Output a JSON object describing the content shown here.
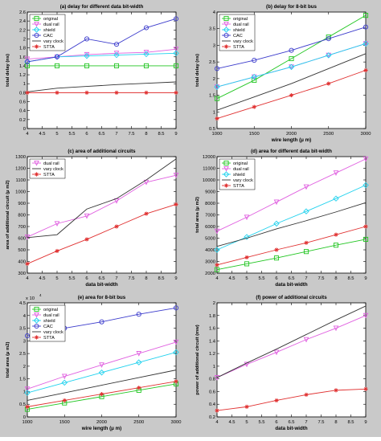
{
  "figure": {
    "background": "#c9c9c9",
    "plot_background": "#ffffff"
  },
  "chart_data": [
    {
      "type": "line",
      "title": "(a) delay for different data bit-width",
      "xlabel": "",
      "ylabel": "total delay (ns)",
      "xlim": [
        4,
        9
      ],
      "ylim": [
        0,
        2.6
      ],
      "xticks": [
        "4",
        "4.5",
        "5",
        "5.5",
        "6",
        "6.5",
        "7",
        "7.5",
        "8",
        "8.5",
        "9"
      ],
      "yticks": [
        "0",
        "0.2",
        "0.4",
        "0.6",
        "0.8",
        "1",
        "1.2",
        "1.4",
        "1.6",
        "1.8",
        "2",
        "2.2",
        "2.4",
        "2.6"
      ],
      "legend": "top-left",
      "series": [
        {
          "name": "original",
          "color": "#22c622",
          "marker": "square",
          "x": [
            4,
            5,
            6,
            7,
            8,
            9
          ],
          "y": [
            1.4,
            1.4,
            1.4,
            1.4,
            1.4,
            1.4
          ]
        },
        {
          "name": "dual rail",
          "color": "#e060e0",
          "marker": "triangle",
          "x": [
            4,
            5,
            6,
            7,
            8,
            9
          ],
          "y": [
            1.55,
            1.6,
            1.65,
            1.68,
            1.7,
            1.77
          ]
        },
        {
          "name": "shield",
          "color": "#22d2ee",
          "marker": "diamond",
          "x": [
            4,
            5,
            6,
            7,
            8,
            9
          ],
          "y": [
            1.49,
            1.6,
            1.62,
            1.64,
            1.66,
            1.68
          ]
        },
        {
          "name": "CAC",
          "color": "#3c3ccc",
          "marker": "circle",
          "x": [
            4,
            5,
            6,
            7,
            8,
            9
          ],
          "y": [
            1.49,
            1.6,
            2,
            1.88,
            2.25,
            2.45
          ]
        },
        {
          "name": "vary clock",
          "color": "#333333",
          "marker": "none",
          "x": [
            4,
            5,
            6,
            7,
            8,
            9
          ],
          "y": [
            0.82,
            0.9,
            0.94,
            0.98,
            1.01,
            1.04
          ]
        },
        {
          "name": "STTA",
          "color": "#e03030",
          "marker": "star",
          "x": [
            4,
            5,
            6,
            7,
            8,
            9
          ],
          "y": [
            0.8,
            0.8,
            0.8,
            0.8,
            0.8,
            0.8
          ]
        }
      ]
    },
    {
      "type": "line",
      "title": "(b) delay for 8-bit bus",
      "xlabel": "wire length (μ m)",
      "ylabel": "total delay (ns)",
      "xlim": [
        1000,
        3000
      ],
      "ylim": [
        0.5,
        4
      ],
      "xticks": [
        "1000",
        "1500",
        "2000",
        "2500",
        "3000"
      ],
      "yticks": [
        "0.5",
        "1",
        "1.5",
        "2",
        "2.5",
        "3",
        "3.5",
        "4"
      ],
      "legend": "top-left",
      "series": [
        {
          "name": "original",
          "color": "#22c622",
          "marker": "square",
          "x": [
            1000,
            1500,
            2000,
            2500,
            3000
          ],
          "y": [
            1.4,
            1.95,
            2.6,
            3.25,
            3.9
          ]
        },
        {
          "name": "dual rail",
          "color": "#e060e0",
          "marker": "triangle",
          "x": [
            1000,
            1500,
            2000,
            2500,
            3000
          ],
          "y": [
            1.75,
            2.05,
            2.35,
            2.7,
            3.05
          ]
        },
        {
          "name": "shield",
          "color": "#22d2ee",
          "marker": "diamond",
          "x": [
            1000,
            1500,
            2000,
            2500,
            3000
          ],
          "y": [
            1.75,
            2.05,
            2.35,
            2.7,
            3.05
          ]
        },
        {
          "name": "CAC",
          "color": "#3c3ccc",
          "marker": "circle",
          "x": [
            1000,
            1500,
            2000,
            2500,
            3000
          ],
          "y": [
            2.3,
            2.55,
            2.85,
            3.2,
            3.55
          ]
        },
        {
          "name": "vary clock",
          "color": "#333333",
          "marker": "none",
          "x": [
            1000,
            1500,
            2000,
            2500,
            3000
          ],
          "y": [
            1.05,
            1.45,
            1.85,
            2.3,
            2.75
          ]
        },
        {
          "name": "STTA",
          "color": "#e03030",
          "marker": "star",
          "x": [
            1000,
            1500,
            2000,
            2500,
            3000
          ],
          "y": [
            0.8,
            1.15,
            1.5,
            1.85,
            2.25
          ]
        }
      ]
    },
    {
      "type": "line",
      "title": "(c) area of additional circuits",
      "xlabel": "data bit-width",
      "ylabel": "area of additional circuit (μ m2)",
      "xlim": [
        4,
        9
      ],
      "ylim": [
        300,
        1300
      ],
      "xticks": [
        "4",
        "4.5",
        "5",
        "5.5",
        "6",
        "6.5",
        "7",
        "7.5",
        "8",
        "8.5",
        "9"
      ],
      "yticks": [
        "300",
        "400",
        "500",
        "600",
        "700",
        "800",
        "900",
        "1000",
        "1100",
        "1200",
        "1300"
      ],
      "legend": "top-left",
      "series": [
        {
          "name": "dual rail",
          "color": "#e060e0",
          "marker": "triangle",
          "x": [
            4,
            5,
            6,
            7,
            8,
            9
          ],
          "y": [
            610,
            725,
            790,
            920,
            1080,
            1140
          ]
        },
        {
          "name": "vary clock",
          "color": "#333333",
          "marker": "none",
          "x": [
            4,
            5,
            6,
            7,
            8,
            9
          ],
          "y": [
            605,
            630,
            850,
            940,
            1100,
            1280
          ]
        },
        {
          "name": "STTA",
          "color": "#e03030",
          "marker": "star",
          "x": [
            4,
            5,
            6,
            7,
            8,
            9
          ],
          "y": [
            380,
            490,
            590,
            700,
            810,
            890
          ]
        }
      ]
    },
    {
      "type": "line",
      "title": "(d) area for different data bit-width",
      "xlabel": "data bit-width",
      "ylabel": "total area (μ m2)",
      "xlim": [
        4,
        9
      ],
      "ylim": [
        2000,
        12000
      ],
      "xticks": [
        "4",
        "4.5",
        "5",
        "5.5",
        "6",
        "6.5",
        "7",
        "7.5",
        "8",
        "8.5",
        "9"
      ],
      "yticks": [
        "2000",
        "3000",
        "4000",
        "5000",
        "6000",
        "7000",
        "8000",
        "9000",
        "10000",
        "11000",
        "12000"
      ],
      "legend": "top-left",
      "series": [
        {
          "name": "original",
          "color": "#22c622",
          "marker": "square",
          "x": [
            4,
            5,
            6,
            7,
            8,
            9
          ],
          "y": [
            2300,
            2800,
            3300,
            3850,
            4400,
            4900
          ]
        },
        {
          "name": "dual rail",
          "color": "#e060e0",
          "marker": "triangle",
          "x": [
            4,
            5,
            6,
            7,
            8,
            9
          ],
          "y": [
            5600,
            6800,
            8100,
            9400,
            10600,
            11800
          ]
        },
        {
          "name": "shield",
          "color": "#22d2ee",
          "marker": "diamond",
          "x": [
            4,
            5,
            6,
            7,
            8,
            9
          ],
          "y": [
            4000,
            5100,
            6250,
            7300,
            8400,
            9550
          ]
        },
        {
          "name": "vary clock",
          "color": "#333333",
          "marker": "none",
          "x": [
            4,
            5,
            6,
            7,
            8,
            9
          ],
          "y": [
            4300,
            5000,
            5800,
            6500,
            7250,
            8050
          ]
        },
        {
          "name": "STTA",
          "color": "#e03030",
          "marker": "star",
          "x": [
            4,
            5,
            6,
            7,
            8,
            9
          ],
          "y": [
            2700,
            3350,
            4000,
            4600,
            5300,
            6000
          ]
        }
      ]
    },
    {
      "type": "line",
      "title": "(e) area for 8-bit bus",
      "xlabel": "wire length (μ m)",
      "ylabel": "total area (μ m2)",
      "exponent": "x 10",
      "exponent_power": "4",
      "xlim": [
        1000,
        3000
      ],
      "ylim": [
        0,
        4.5
      ],
      "xticks": [
        "1000",
        "1500",
        "2000",
        "2500",
        "3000"
      ],
      "yticks": [
        "0",
        "0.5",
        "1",
        "1.5",
        "2",
        "2.5",
        "3",
        "3.5",
        "4",
        "4.5"
      ],
      "legend": "top-left",
      "series": [
        {
          "name": "original",
          "color": "#22c622",
          "marker": "square",
          "x": [
            1000,
            1500,
            2000,
            2500,
            3000
          ],
          "y": [
            0.3,
            0.55,
            0.8,
            1.05,
            1.3
          ]
        },
        {
          "name": "dual rail",
          "color": "#e060e0",
          "marker": "triangle",
          "x": [
            1000,
            1500,
            2000,
            2500,
            3000
          ],
          "y": [
            1.1,
            1.6,
            2.05,
            2.5,
            2.95
          ]
        },
        {
          "name": "shield",
          "color": "#22d2ee",
          "marker": "diamond",
          "x": [
            1000,
            1500,
            2000,
            2500,
            3000
          ],
          "y": [
            0.95,
            1.35,
            1.75,
            2.15,
            2.55
          ]
        },
        {
          "name": "CAC",
          "color": "#3c3ccc",
          "marker": "circle",
          "x": [
            1000,
            1500,
            2000,
            2500,
            3000
          ],
          "y": [
            3.2,
            3.5,
            3.75,
            4.05,
            4.3
          ]
        },
        {
          "name": "vary clock",
          "color": "#333333",
          "marker": "none",
          "x": [
            1000,
            1500,
            2000,
            2500,
            3000
          ],
          "y": [
            0.65,
            0.95,
            1.25,
            1.55,
            1.85
          ]
        },
        {
          "name": "STTA",
          "color": "#e03030",
          "marker": "star",
          "x": [
            1000,
            1500,
            2000,
            2500,
            3000
          ],
          "y": [
            0.4,
            0.65,
            0.9,
            1.15,
            1.4
          ]
        }
      ]
    },
    {
      "type": "line",
      "title": "(f) power of additional circuits",
      "xlabel": "data bit-width",
      "ylabel": "power of additional circuit (mw)",
      "xlim": [
        4,
        9
      ],
      "ylim": [
        0.2,
        2
      ],
      "xticks": [
        "4",
        "4.5",
        "5",
        "5.5",
        "6",
        "6.5",
        "7",
        "7.5",
        "8",
        "8.5",
        "9"
      ],
      "yticks": [
        "0.2",
        "0.4",
        "0.6",
        "0.8",
        "1",
        "1.2",
        "1.4",
        "1.6",
        "1.8",
        "2"
      ],
      "legend": "none",
      "series": [
        {
          "name": "dual rail",
          "color": "#e060e0",
          "marker": "triangle",
          "x": [
            4,
            5,
            6,
            7,
            8,
            9
          ],
          "y": [
            0.82,
            1.03,
            1.22,
            1.42,
            1.6,
            1.8
          ]
        },
        {
          "name": "vary clock",
          "color": "#333333",
          "marker": "none",
          "x": [
            4,
            5,
            6,
            7,
            8,
            9
          ],
          "y": [
            0.82,
            1.05,
            1.27,
            1.5,
            1.73,
            1.95
          ]
        },
        {
          "name": "STTA",
          "color": "#e03030",
          "marker": "star",
          "x": [
            4,
            5,
            6,
            7,
            8,
            9
          ],
          "y": [
            0.3,
            0.36,
            0.46,
            0.55,
            0.62,
            0.64
          ]
        }
      ]
    }
  ]
}
